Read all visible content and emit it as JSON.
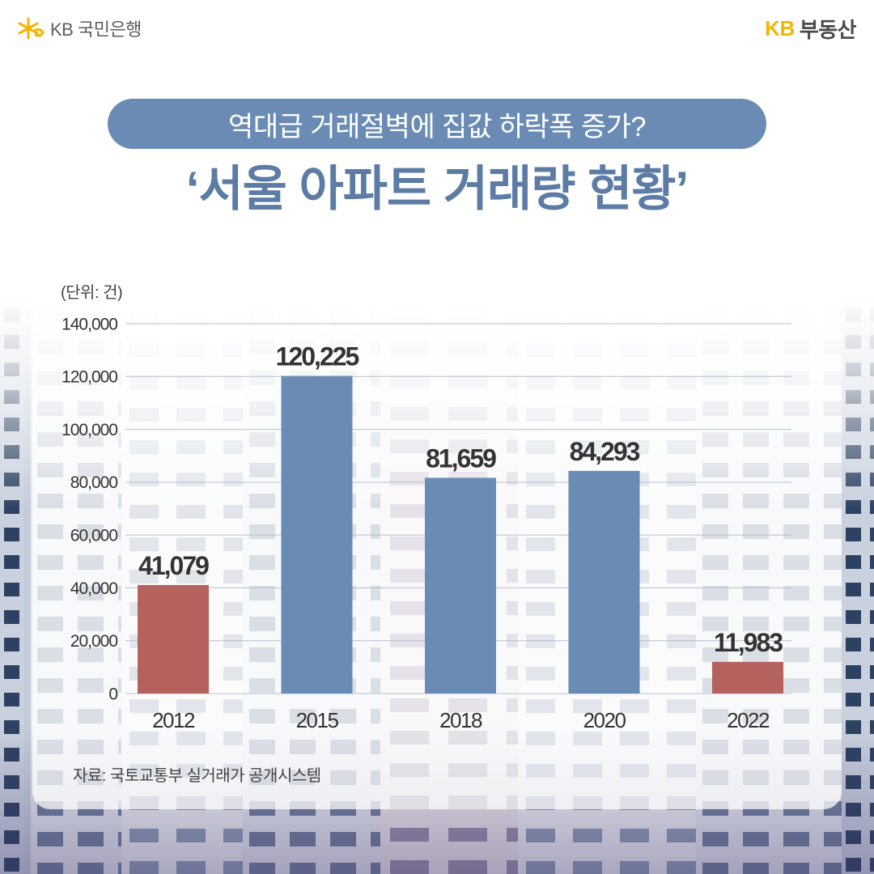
{
  "brand": {
    "left_logo_text": "KB 국민은행",
    "right_logo_prefix": "KB",
    "right_logo_name": "부동산",
    "left_logo_icon": "kb-star-icon",
    "colors": {
      "kb_yellow": "#f5b400",
      "logo_gray": "#5e5e5e"
    }
  },
  "colors": {
    "accent": "#6a8cb4",
    "highlight": "#b5625f",
    "title": "#5c7ca5"
  },
  "chart_data": {
    "type": "bar",
    "subtitle": "역대급 거래절벽에 집값 하락폭 증가?",
    "title": "‘서울 아파트 거래량 현황’",
    "unit_label": "(단위: 건)",
    "categories": [
      "2012",
      "2015",
      "2018",
      "2020",
      "2022"
    ],
    "values": [
      41079,
      120225,
      81659,
      84293,
      11983
    ],
    "value_labels": [
      "41,079",
      "120,225",
      "81,659",
      "84,293",
      "11,983"
    ],
    "ylim": [
      0,
      140000
    ],
    "yticks": [
      0,
      20000,
      40000,
      60000,
      80000,
      100000,
      120000,
      140000
    ],
    "ytick_labels": [
      "0",
      "20,000",
      "40,000",
      "60,000",
      "80,000",
      "100,000",
      "120,000",
      "140,000"
    ],
    "bar_colors": [
      "#b5625f",
      "#6a8cb4",
      "#6a8cb4",
      "#6a8cb4",
      "#b5625f"
    ],
    "grid": true,
    "legend": "none",
    "source": "자료: 국토교통부 실거래가 공개시스템"
  }
}
